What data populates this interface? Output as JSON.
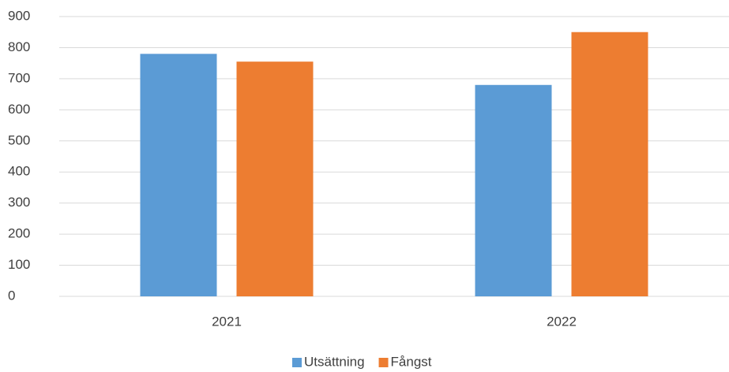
{
  "chart_data": {
    "type": "bar",
    "categories": [
      "2021",
      "2022"
    ],
    "series": [
      {
        "name": "Utsättning",
        "color": "#5b9bd5",
        "values": [
          780,
          680
        ]
      },
      {
        "name": "Fångst",
        "color": "#ed7d31",
        "values": [
          755,
          850
        ]
      }
    ],
    "ylim": [
      0,
      900
    ],
    "yticks": [
      0,
      100,
      200,
      300,
      400,
      500,
      600,
      700,
      800,
      900
    ],
    "grid": true,
    "legend": "bottom"
  }
}
